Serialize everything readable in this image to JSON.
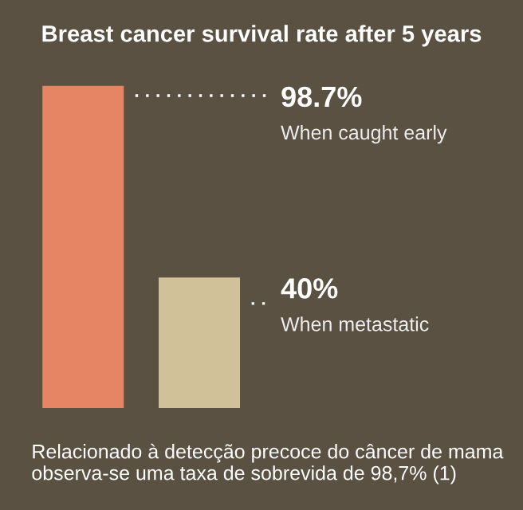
{
  "chart_data": {
    "type": "bar",
    "title": "Breast cancer survival rate after 5 years",
    "categories": [
      null,
      null
    ],
    "values": [
      98.7,
      40
    ],
    "value_labels": [
      "98.7%",
      "40%"
    ],
    "colors": [
      "#e58564",
      "#d0c198"
    ],
    "ylim": [
      0,
      100
    ],
    "annotations": [
      "When caught early",
      "When metastatic",
      "Relacionado à detecção precoce do câncer de mama observa-se uma taxa de sobrevida de 98,7% (1)"
    ]
  }
}
